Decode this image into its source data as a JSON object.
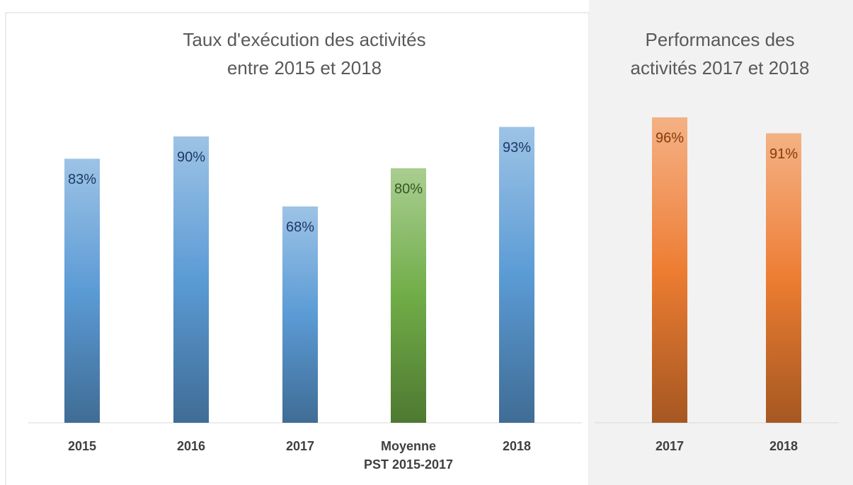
{
  "chart_data": [
    {
      "type": "bar",
      "title": [
        "Taux d'exécution des activités",
        "entre 2015 et 2018"
      ],
      "categories": [
        "2015",
        "2016",
        "2017",
        "Moyenne PST 2015-2017",
        "2018"
      ],
      "values": [
        83,
        90,
        68,
        80,
        93
      ],
      "value_labels": [
        "83%",
        "90%",
        "68%",
        "80%",
        "93%"
      ],
      "colors": [
        "#5b9bd5",
        "#5b9bd5",
        "#5b9bd5",
        "#70ad47",
        "#5b9bd5"
      ],
      "ylim": [
        0,
        100
      ]
    },
    {
      "type": "bar",
      "title": [
        "Performances des",
        "activités 2017 et 2018"
      ],
      "categories": [
        "2017",
        "2018"
      ],
      "values": [
        96,
        91
      ],
      "value_labels": [
        "96%",
        "91%"
      ],
      "colors": [
        "#ed7d31",
        "#ed7d31"
      ],
      "ylim": [
        0,
        100
      ]
    }
  ]
}
